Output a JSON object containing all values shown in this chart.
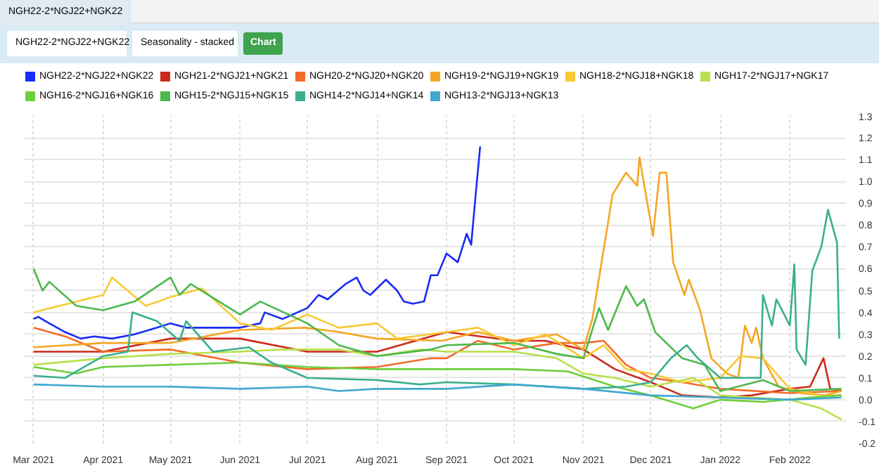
{
  "chart_data": {
    "type": "line",
    "title": "NGH22-2*NGJ22+NGK22",
    "subtitle": "Seasonality - stacked",
    "annotations": [
      "Chart"
    ],
    "legend": "top",
    "grid": true,
    "xlim": [
      "2021-02-25",
      "2022-02-26"
    ],
    "ylim": [
      -0.2,
      1.3
    ],
    "xticks": [
      {
        "value": "2021-03-01",
        "label": "Mar 2021"
      },
      {
        "value": "2021-04-01",
        "label": "Apr 2021"
      },
      {
        "value": "2021-05-01",
        "label": "May 2021"
      },
      {
        "value": "2021-06-01",
        "label": "Jun 2021"
      },
      {
        "value": "2021-07-01",
        "label": "Jul 2021"
      },
      {
        "value": "2021-08-01",
        "label": "Aug 2021"
      },
      {
        "value": "2021-09-01",
        "label": "Sep 2021"
      },
      {
        "value": "2021-10-01",
        "label": "Oct 2021"
      },
      {
        "value": "2021-11-01",
        "label": "Nov 2021"
      },
      {
        "value": "2021-12-01",
        "label": "Dec 2021"
      },
      {
        "value": "2022-01-01",
        "label": "Jan 2022"
      },
      {
        "value": "2022-02-01",
        "label": "Feb 2022"
      }
    ],
    "yticks": [
      {
        "value": -0.2,
        "label": "-0.2"
      },
      {
        "value": -0.1,
        "label": "-0.1"
      },
      {
        "value": 0,
        "label": "0.0"
      },
      {
        "value": 0.1,
        "label": "0.1"
      },
      {
        "value": 0.2,
        "label": "0.2"
      },
      {
        "value": 0.3,
        "label": "0.3"
      },
      {
        "value": 0.4,
        "label": "0.4"
      },
      {
        "value": 0.5,
        "label": "0.5"
      },
      {
        "value": 0.6,
        "label": "0.6"
      },
      {
        "value": 0.7,
        "label": "0.7"
      },
      {
        "value": 0.8,
        "label": "0.8"
      },
      {
        "value": 0.9,
        "label": "0.9"
      },
      {
        "value": 1.0,
        "label": "1.0"
      },
      {
        "value": 1.1,
        "label": "1.1"
      },
      {
        "value": 1.2,
        "label": "1.2"
      },
      {
        "value": 1.3,
        "label": "1.3"
      }
    ],
    "series": [
      {
        "name": "NGH22-2*NGJ22+NGK22",
        "color": "#1a2cf5",
        "x": [
          "2021-03-01",
          "2021-03-03",
          "2021-03-08",
          "2021-03-15",
          "2021-03-22",
          "2021-03-28",
          "2021-04-05",
          "2021-04-15",
          "2021-04-25",
          "2021-05-01",
          "2021-05-08",
          "2021-05-20",
          "2021-06-01",
          "2021-06-10",
          "2021-06-12",
          "2021-06-20",
          "2021-07-01",
          "2021-07-06",
          "2021-07-10",
          "2021-07-18",
          "2021-07-23",
          "2021-07-26",
          "2021-07-29",
          "2021-08-05",
          "2021-08-10",
          "2021-08-13",
          "2021-08-17",
          "2021-08-22",
          "2021-08-25",
          "2021-08-28",
          "2021-09-01",
          "2021-09-06",
          "2021-09-10",
          "2021-09-12",
          "2021-09-14",
          "2021-09-16"
        ],
        "values": [
          0.37,
          0.38,
          0.35,
          0.31,
          0.28,
          0.29,
          0.28,
          0.3,
          0.33,
          0.35,
          0.33,
          0.33,
          0.33,
          0.35,
          0.4,
          0.37,
          0.42,
          0.48,
          0.46,
          0.53,
          0.56,
          0.5,
          0.48,
          0.55,
          0.5,
          0.45,
          0.44,
          0.45,
          0.57,
          0.57,
          0.67,
          0.63,
          0.76,
          0.71,
          0.94,
          1.16
        ]
      },
      {
        "name": "NGH21-2*NGJ21+NGK21",
        "color": "#cc2a1a",
        "x": [
          "2021-03-01",
          "2021-04-01",
          "2021-05-01",
          "2021-06-01",
          "2021-07-01",
          "2021-08-01",
          "2021-09-01",
          "2021-10-01",
          "2021-10-15",
          "2021-11-01",
          "2021-11-15",
          "2021-12-01",
          "2021-12-15",
          "2022-01-01",
          "2022-01-15",
          "2022-02-01",
          "2022-02-10",
          "2022-02-16",
          "2022-02-19",
          "2022-02-24"
        ],
        "values": [
          0.22,
          0.22,
          0.28,
          0.28,
          0.22,
          0.22,
          0.31,
          0.27,
          0.27,
          0.23,
          0.14,
          0.08,
          0.02,
          0.01,
          0.02,
          0.05,
          0.06,
          0.19,
          0.05,
          0.04
        ]
      },
      {
        "name": "NGH20-2*NGJ20+NGK20",
        "color": "#f26b2a",
        "x": [
          "2021-03-01",
          "2021-03-15",
          "2021-04-01",
          "2021-05-01",
          "2021-06-01",
          "2021-07-01",
          "2021-08-01",
          "2021-08-25",
          "2021-09-01",
          "2021-09-15",
          "2021-10-01",
          "2021-10-20",
          "2021-11-01",
          "2021-11-10",
          "2021-11-20",
          "2021-12-01",
          "2021-12-15",
          "2022-01-01",
          "2022-02-01",
          "2022-02-24"
        ],
        "values": [
          0.33,
          0.29,
          0.22,
          0.23,
          0.17,
          0.14,
          0.15,
          0.19,
          0.19,
          0.27,
          0.23,
          0.26,
          0.26,
          0.27,
          0.16,
          0.1,
          0.08,
          0.05,
          0.03,
          0.04
        ]
      },
      {
        "name": "NGH19-2*NGJ19+NGK19",
        "color": "#f5a623",
        "x": [
          "2021-03-01",
          "2021-04-01",
          "2021-05-01",
          "2021-06-01",
          "2021-06-30",
          "2021-07-15",
          "2021-08-01",
          "2021-08-30",
          "2021-09-15",
          "2021-10-01",
          "2021-10-20",
          "2021-11-01",
          "2021-11-05",
          "2021-11-14",
          "2021-11-20",
          "2021-11-25",
          "2021-11-26",
          "2021-12-02",
          "2021-12-05",
          "2021-12-08",
          "2021-12-11",
          "2021-12-16",
          "2021-12-18",
          "2021-12-23",
          "2021-12-28",
          "2022-01-04",
          "2022-01-09",
          "2022-01-12",
          "2022-01-15",
          "2022-01-17",
          "2022-01-20",
          "2022-01-27",
          "2022-02-06",
          "2022-02-16",
          "2022-02-24"
        ],
        "values": [
          0.24,
          0.26,
          0.26,
          0.32,
          0.33,
          0.31,
          0.28,
          0.27,
          0.31,
          0.27,
          0.3,
          0.23,
          0.37,
          0.94,
          1.04,
          0.98,
          1.11,
          0.75,
          1.04,
          1.04,
          0.63,
          0.48,
          0.55,
          0.41,
          0.19,
          0.12,
          0.1,
          0.34,
          0.26,
          0.33,
          0.19,
          0.06,
          0.03,
          0.02,
          0.04
        ]
      },
      {
        "name": "NGH18-2*NGJ18+NGK18",
        "color": "#f7c933",
        "x": [
          "2021-03-01",
          "2021-04-01",
          "2021-04-05",
          "2021-04-20",
          "2021-05-01",
          "2021-05-15",
          "2021-06-01",
          "2021-06-15",
          "2021-07-01",
          "2021-07-15",
          "2021-08-01",
          "2021-08-10",
          "2021-09-01",
          "2021-09-15",
          "2021-10-01",
          "2021-10-15",
          "2021-11-01",
          "2021-11-10",
          "2021-11-20",
          "2021-12-01",
          "2021-12-15",
          "2022-01-01",
          "2022-01-10",
          "2022-01-20",
          "2022-02-01",
          "2022-02-15",
          "2022-02-24"
        ],
        "values": [
          0.4,
          0.48,
          0.56,
          0.43,
          0.47,
          0.51,
          0.35,
          0.32,
          0.39,
          0.33,
          0.35,
          0.28,
          0.31,
          0.33,
          0.25,
          0.3,
          0.19,
          0.25,
          0.14,
          0.12,
          0.08,
          0.1,
          0.2,
          0.19,
          0.05,
          0.02,
          0.02
        ]
      },
      {
        "name": "NGH17-2*NGJ17+NGK17",
        "color": "#b8e04a",
        "x": [
          "2021-03-01",
          "2021-04-01",
          "2021-05-01",
          "2021-06-01",
          "2021-06-20",
          "2021-07-15",
          "2021-08-01",
          "2021-08-20",
          "2021-09-01",
          "2021-10-01",
          "2021-10-20",
          "2021-11-01",
          "2021-11-15",
          "2021-12-01",
          "2021-12-20",
          "2022-01-01",
          "2022-01-15",
          "2022-02-01",
          "2022-02-15",
          "2022-02-24"
        ],
        "values": [
          0.16,
          0.19,
          0.21,
          0.22,
          0.23,
          0.23,
          0.2,
          0.23,
          0.22,
          0.22,
          0.19,
          0.12,
          0.1,
          0.06,
          0.1,
          0.02,
          0.01,
          0.0,
          -0.04,
          -0.09
        ]
      },
      {
        "name": "NGH16-2*NGJ16+NGK16",
        "color": "#6ccf3a",
        "x": [
          "2021-03-01",
          "2021-03-20",
          "2021-04-01",
          "2021-05-01",
          "2021-06-01",
          "2021-07-01",
          "2021-08-01",
          "2021-09-01",
          "2021-10-01",
          "2021-10-25",
          "2021-11-15",
          "2021-12-01",
          "2021-12-20",
          "2022-01-01",
          "2022-01-20",
          "2022-02-10",
          "2022-02-24"
        ],
        "values": [
          0.15,
          0.12,
          0.15,
          0.16,
          0.17,
          0.15,
          0.14,
          0.14,
          0.14,
          0.13,
          0.06,
          0.02,
          -0.04,
          0.0,
          -0.01,
          0.01,
          0.02
        ]
      },
      {
        "name": "NGH15-2*NGJ15+NGK15",
        "color": "#4cb84c",
        "x": [
          "2021-03-01",
          "2021-03-05",
          "2021-03-08",
          "2021-03-20",
          "2021-04-01",
          "2021-04-15",
          "2021-05-01",
          "2021-05-05",
          "2021-05-10",
          "2021-06-01",
          "2021-06-10",
          "2021-07-01",
          "2021-07-15",
          "2021-08-01",
          "2021-08-25",
          "2021-09-01",
          "2021-10-01",
          "2021-10-20",
          "2021-11-01",
          "2021-11-08",
          "2021-11-12",
          "2021-11-20",
          "2021-11-25",
          "2021-11-28",
          "2021-12-03",
          "2021-12-15",
          "2021-12-25",
          "2022-01-01",
          "2022-01-20",
          "2022-02-01",
          "2022-02-24"
        ],
        "values": [
          0.6,
          0.5,
          0.54,
          0.43,
          0.41,
          0.45,
          0.56,
          0.48,
          0.53,
          0.39,
          0.45,
          0.35,
          0.25,
          0.2,
          0.23,
          0.25,
          0.26,
          0.21,
          0.19,
          0.42,
          0.32,
          0.52,
          0.43,
          0.46,
          0.31,
          0.19,
          0.16,
          0.04,
          0.09,
          0.04,
          0.05
        ]
      },
      {
        "name": "NGH14-2*NGJ14+NGK14",
        "color": "#3aaf8f",
        "x": [
          "2021-03-01",
          "2021-03-15",
          "2021-04-01",
          "2021-04-12",
          "2021-04-14",
          "2021-04-25",
          "2021-05-05",
          "2021-05-08",
          "2021-05-20",
          "2021-06-05",
          "2021-06-15",
          "2021-07-01",
          "2021-08-01",
          "2021-08-20",
          "2021-09-01",
          "2021-10-01",
          "2021-11-01",
          "2021-11-20",
          "2021-12-01",
          "2021-12-10",
          "2021-12-17",
          "2021-12-22",
          "2022-01-01",
          "2022-01-15",
          "2022-01-19",
          "2022-01-20",
          "2022-01-24",
          "2022-01-26",
          "2022-02-01",
          "2022-02-03",
          "2022-02-04",
          "2022-02-08",
          "2022-02-11",
          "2022-02-15",
          "2022-02-18",
          "2022-02-22",
          "2022-02-23"
        ],
        "values": [
          0.11,
          0.1,
          0.2,
          0.22,
          0.4,
          0.36,
          0.27,
          0.36,
          0.22,
          0.24,
          0.17,
          0.1,
          0.09,
          0.07,
          0.08,
          0.07,
          0.05,
          0.06,
          0.08,
          0.19,
          0.25,
          0.19,
          0.1,
          0.1,
          0.1,
          0.48,
          0.34,
          0.46,
          0.34,
          0.62,
          0.23,
          0.16,
          0.59,
          0.7,
          0.87,
          0.72,
          0.28
        ]
      },
      {
        "name": "NGH13-2*NGJ13+NGK13",
        "color": "#40a8d0",
        "x": [
          "2021-03-01",
          "2021-04-01",
          "2021-05-01",
          "2021-06-01",
          "2021-07-01",
          "2021-07-15",
          "2021-08-01",
          "2021-09-01",
          "2021-10-01",
          "2021-11-01",
          "2021-12-01",
          "2022-01-01",
          "2022-02-01",
          "2022-02-24"
        ],
        "values": [
          0.07,
          0.06,
          0.06,
          0.05,
          0.06,
          0.04,
          0.05,
          0.05,
          0.07,
          0.05,
          0.02,
          0.01,
          0.0,
          0.01
        ]
      }
    ]
  }
}
